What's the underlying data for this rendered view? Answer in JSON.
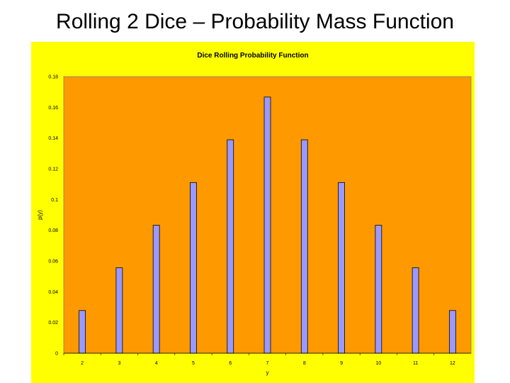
{
  "slide": {
    "title": "Rolling 2 Dice – Probability Mass Function"
  },
  "colors": {
    "chart_area": "#ffff00",
    "plot_area": "#ff9900",
    "bar_fill": "#9999ff",
    "bar_stroke": "#000000"
  },
  "chart_data": {
    "type": "bar",
    "title": "Dice Rolling Probability Function",
    "xlabel": "y",
    "ylabel": "p(y)",
    "categories": [
      "2",
      "3",
      "4",
      "5",
      "6",
      "7",
      "8",
      "9",
      "10",
      "11",
      "12"
    ],
    "values": [
      0.0278,
      0.0556,
      0.0833,
      0.1111,
      0.1389,
      0.1667,
      0.1389,
      0.1111,
      0.0833,
      0.0556,
      0.0278
    ],
    "ylim": [
      0,
      0.18
    ],
    "yticks": [
      "0",
      "0.02",
      "0.04",
      "0.06",
      "0.08",
      "0.1",
      "0.12",
      "0.14",
      "0.16",
      "0.18"
    ],
    "grid": false,
    "legend": "none"
  }
}
